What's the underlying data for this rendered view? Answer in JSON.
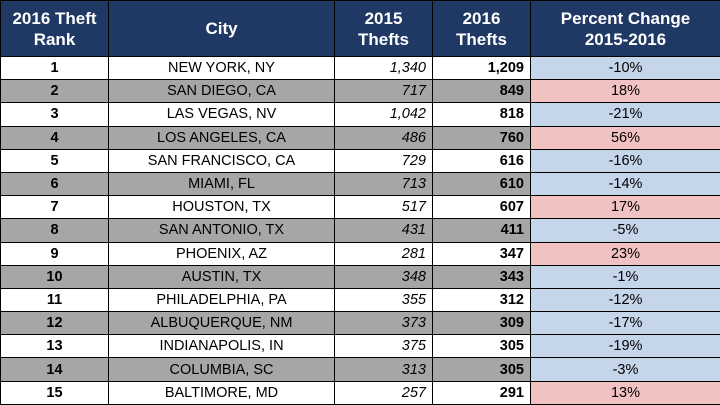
{
  "chart_data": {
    "type": "table",
    "columns": [
      {
        "key": "rank",
        "label_lines": [
          "2016 Theft",
          "Rank"
        ]
      },
      {
        "key": "city",
        "label_lines": [
          "City"
        ]
      },
      {
        "key": "thefts_2015",
        "label_lines": [
          "2015",
          "Thefts"
        ]
      },
      {
        "key": "thefts_2016",
        "label_lines": [
          "2016",
          "Thefts"
        ]
      },
      {
        "key": "pct_change",
        "label_lines": [
          "Percent Change",
          "2015-2016"
        ]
      }
    ],
    "rows": [
      {
        "rank": "1",
        "city": "NEW YORK, NY",
        "thefts_2015": "1,340",
        "thefts_2016": "1,209",
        "pct_change": "-10%",
        "direction": "decrease"
      },
      {
        "rank": "2",
        "city": "SAN DIEGO, CA",
        "thefts_2015": "717",
        "thefts_2016": "849",
        "pct_change": "18%",
        "direction": "increase"
      },
      {
        "rank": "3",
        "city": "LAS VEGAS, NV",
        "thefts_2015": "1,042",
        "thefts_2016": "818",
        "pct_change": "-21%",
        "direction": "decrease"
      },
      {
        "rank": "4",
        "city": "LOS ANGELES, CA",
        "thefts_2015": "486",
        "thefts_2016": "760",
        "pct_change": "56%",
        "direction": "increase"
      },
      {
        "rank": "5",
        "city": "SAN FRANCISCO, CA",
        "thefts_2015": "729",
        "thefts_2016": "616",
        "pct_change": "-16%",
        "direction": "decrease"
      },
      {
        "rank": "6",
        "city": "MIAMI, FL",
        "thefts_2015": "713",
        "thefts_2016": "610",
        "pct_change": "-14%",
        "direction": "decrease"
      },
      {
        "rank": "7",
        "city": "HOUSTON, TX",
        "thefts_2015": "517",
        "thefts_2016": "607",
        "pct_change": "17%",
        "direction": "increase"
      },
      {
        "rank": "8",
        "city": "SAN ANTONIO, TX",
        "thefts_2015": "431",
        "thefts_2016": "411",
        "pct_change": "-5%",
        "direction": "decrease"
      },
      {
        "rank": "9",
        "city": "PHOENIX, AZ",
        "thefts_2015": "281",
        "thefts_2016": "347",
        "pct_change": "23%",
        "direction": "increase"
      },
      {
        "rank": "10",
        "city": "AUSTIN, TX",
        "thefts_2015": "348",
        "thefts_2016": "343",
        "pct_change": "-1%",
        "direction": "decrease"
      },
      {
        "rank": "11",
        "city": "PHILADELPHIA, PA",
        "thefts_2015": "355",
        "thefts_2016": "312",
        "pct_change": "-12%",
        "direction": "decrease"
      },
      {
        "rank": "12",
        "city": "ALBUQUERQUE, NM",
        "thefts_2015": "373",
        "thefts_2016": "309",
        "pct_change": "-17%",
        "direction": "decrease"
      },
      {
        "rank": "13",
        "city": "INDIANAPOLIS, IN",
        "thefts_2015": "375",
        "thefts_2016": "305",
        "pct_change": "-19%",
        "direction": "decrease"
      },
      {
        "rank": "14",
        "city": "COLUMBIA, SC",
        "thefts_2015": "313",
        "thefts_2016": "305",
        "pct_change": "-3%",
        "direction": "decrease"
      },
      {
        "rank": "15",
        "city": "BALTIMORE, MD",
        "thefts_2015": "257",
        "thefts_2016": "291",
        "pct_change": "13%",
        "direction": "increase"
      }
    ]
  },
  "colors": {
    "header_bg": "#1f3864",
    "header_text": "#ffffff",
    "row_even_bg": "#a6a6a6",
    "decrease_bg": "#c5d5ea",
    "increase_bg": "#f2c1c1"
  }
}
